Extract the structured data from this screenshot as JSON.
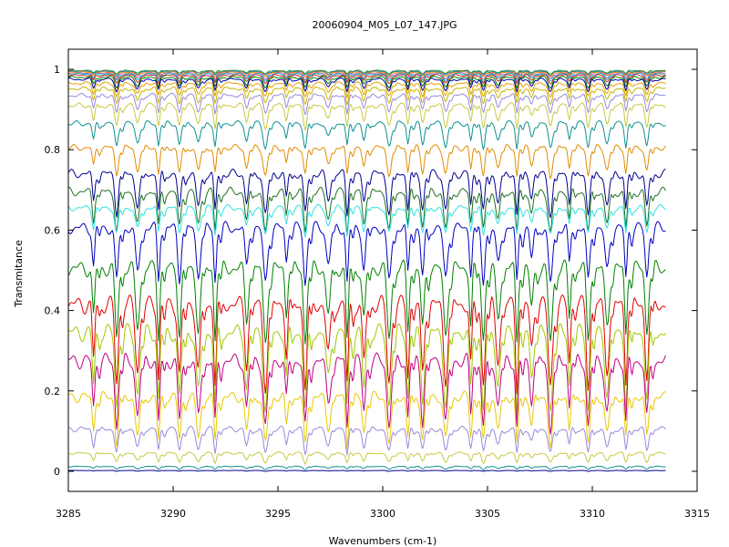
{
  "chart_data": {
    "type": "line",
    "title": "20060904_M05_L07_147.JPG",
    "xlabel": "Wavenumbers (cm-1)",
    "ylabel": "Transmitance",
    "xlim": [
      3285,
      3315
    ],
    "ylim": [
      -0.05,
      1.05
    ],
    "x_data_range": [
      3285,
      3313.5
    ],
    "x_ticks": [
      3285,
      3290,
      3295,
      3300,
      3305,
      3310,
      3315
    ],
    "y_ticks": [
      0,
      0.2,
      0.4,
      0.6,
      0.8,
      1
    ],
    "y_tick_labels": [
      "0",
      "0.2",
      "0.4",
      "0.6",
      "0.8",
      "1"
    ],
    "grid": false,
    "absorption_lines_cm1": [
      3286.2,
      3287.3,
      3288.3,
      3289.3,
      3290.3,
      3291.2,
      3292.0,
      3293.5,
      3294.4,
      3295.4,
      3296.3,
      3297.4,
      3298.3,
      3299.1,
      3300.3,
      3301.2,
      3301.9,
      3303.0,
      3304.2,
      3304.8,
      3305.5,
      3306.4,
      3307.1,
      3308.0,
      3308.9,
      3309.8,
      3310.7,
      3311.6,
      3312.6
    ],
    "series": [
      {
        "baseline": 0.997,
        "depth": 0.008,
        "color": "#2ca02c"
      },
      {
        "baseline": 0.995,
        "depth": 0.01,
        "color": "#1f77b4"
      },
      {
        "baseline": 0.993,
        "depth": 0.012,
        "color": "#ff7f0e"
      },
      {
        "baseline": 0.99,
        "depth": 0.015,
        "color": "#9467bd"
      },
      {
        "baseline": 0.988,
        "depth": 0.018,
        "color": "#17becf"
      },
      {
        "baseline": 0.985,
        "depth": 0.02,
        "color": "#d62728"
      },
      {
        "baseline": 0.98,
        "depth": 0.025,
        "color": "#008000"
      },
      {
        "baseline": 0.975,
        "depth": 0.03,
        "color": "#0000a0"
      },
      {
        "baseline": 0.965,
        "depth": 0.035,
        "color": "#e8a000"
      },
      {
        "baseline": 0.952,
        "depth": 0.04,
        "color": "#c8b400"
      },
      {
        "baseline": 0.935,
        "depth": 0.045,
        "color": "#9988dd"
      },
      {
        "baseline": 0.91,
        "depth": 0.055,
        "color": "#c8c840"
      },
      {
        "baseline": 0.865,
        "depth": 0.06,
        "color": "#109090"
      },
      {
        "baseline": 0.805,
        "depth": 0.07,
        "color": "#e08c00"
      },
      {
        "baseline": 0.74,
        "depth": 0.1,
        "color": "#000090"
      },
      {
        "baseline": 0.695,
        "depth": 0.1,
        "color": "#207020"
      },
      {
        "baseline": 0.655,
        "depth": 0.07,
        "color": "#30e0e0"
      },
      {
        "baseline": 0.605,
        "depth": 0.14,
        "color": "#0000c0"
      },
      {
        "baseline": 0.505,
        "depth": 0.18,
        "color": "#008000"
      },
      {
        "baseline": 0.415,
        "depth": 0.2,
        "color": "#e00000"
      },
      {
        "baseline": 0.345,
        "depth": 0.19,
        "color": "#a0c800"
      },
      {
        "baseline": 0.275,
        "depth": 0.17,
        "color": "#c00080"
      },
      {
        "baseline": 0.185,
        "depth": 0.12,
        "color": "#e8c800"
      },
      {
        "baseline": 0.105,
        "depth": 0.06,
        "color": "#9988dd"
      },
      {
        "baseline": 0.045,
        "depth": 0.025,
        "color": "#c8c840"
      },
      {
        "baseline": 0.012,
        "depth": 0.008,
        "color": "#109090"
      },
      {
        "baseline": 0.002,
        "depth": 0.002,
        "color": "#000090"
      }
    ]
  }
}
